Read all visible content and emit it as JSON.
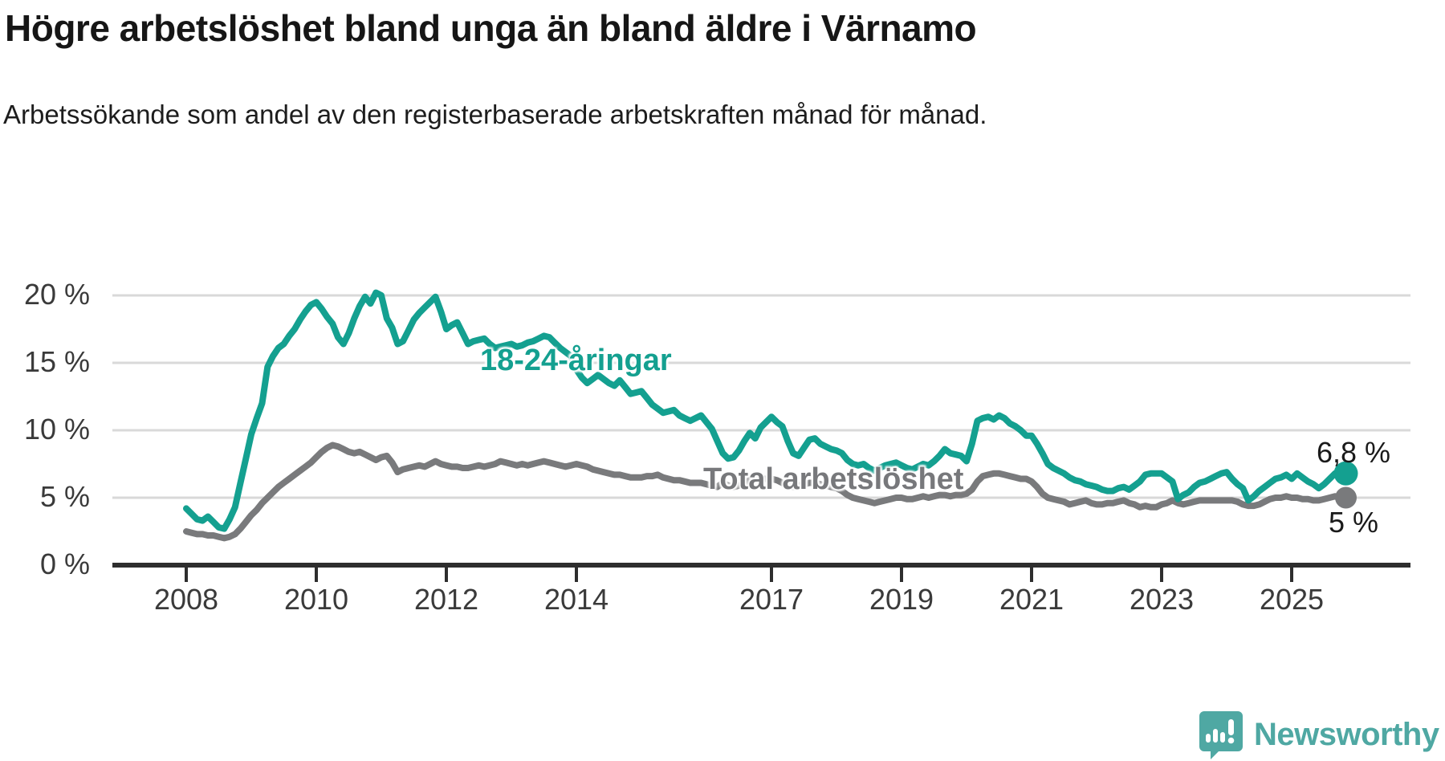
{
  "header": {
    "title": "Högre arbetslöshet bland unga än bland äldre i Värnamo",
    "subtitle": "Arbetssökande som andel av den registerbaserade arbetskraften månad för månad."
  },
  "chart_data": {
    "type": "line",
    "title": "Högre arbetslöshet bland unga än bland äldre i Värnamo",
    "xlabel": "",
    "ylabel": "",
    "grid": "horizontal",
    "ylim": [
      0,
      21
    ],
    "x_start_year": 2008,
    "points_per_year": 12,
    "x_tick_years": [
      2008,
      2010,
      2012,
      2014,
      2017,
      2019,
      2021,
      2023,
      2025
    ],
    "x_tick_labels": [
      "2008",
      "2010",
      "2012",
      "2014",
      "2017",
      "2019",
      "2021",
      "2023",
      "2025"
    ],
    "y_ticks": [
      0,
      5,
      10,
      15,
      20
    ],
    "y_tick_labels": [
      "0 %",
      "5 %",
      "10 %",
      "15 %",
      "20 %"
    ],
    "series": [
      {
        "name": "Total arbetslöshet",
        "label": "Total arbetslöshet",
        "color": "#797a7c",
        "end_label": "5 %",
        "end_value": 5.0,
        "values": [
          2.5,
          2.4,
          2.3,
          2.3,
          2.2,
          2.2,
          2.1,
          2.0,
          2.1,
          2.3,
          2.7,
          3.2,
          3.7,
          4.1,
          4.6,
          5.0,
          5.4,
          5.8,
          6.1,
          6.4,
          6.7,
          7.0,
          7.3,
          7.6,
          8.0,
          8.4,
          8.7,
          8.9,
          8.8,
          8.6,
          8.4,
          8.3,
          8.4,
          8.2,
          8.0,
          7.8,
          8.0,
          8.1,
          7.6,
          6.9,
          7.1,
          7.2,
          7.3,
          7.4,
          7.3,
          7.5,
          7.7,
          7.5,
          7.4,
          7.3,
          7.3,
          7.2,
          7.2,
          7.3,
          7.4,
          7.3,
          7.4,
          7.5,
          7.7,
          7.6,
          7.5,
          7.4,
          7.5,
          7.4,
          7.5,
          7.6,
          7.7,
          7.6,
          7.5,
          7.4,
          7.3,
          7.4,
          7.5,
          7.4,
          7.3,
          7.1,
          7.0,
          6.9,
          6.8,
          6.7,
          6.7,
          6.6,
          6.5,
          6.5,
          6.5,
          6.6,
          6.6,
          6.7,
          6.5,
          6.4,
          6.3,
          6.3,
          6.2,
          6.1,
          6.1,
          6.1,
          6.0,
          5.9,
          5.8,
          6.1,
          5.9,
          5.8,
          5.9,
          6.1,
          6.3,
          6.4,
          6.4,
          6.4,
          6.4,
          6.3,
          6.1,
          5.9,
          5.8,
          5.9,
          6.0,
          6.1,
          6.1,
          6.0,
          5.9,
          5.8,
          5.7,
          5.5,
          5.2,
          5.0,
          4.9,
          4.8,
          4.7,
          4.6,
          4.7,
          4.8,
          4.9,
          5.0,
          5.0,
          4.9,
          4.9,
          5.0,
          5.1,
          5.0,
          5.1,
          5.2,
          5.2,
          5.1,
          5.2,
          5.2,
          5.3,
          5.6,
          6.2,
          6.6,
          6.7,
          6.8,
          6.8,
          6.7,
          6.6,
          6.5,
          6.4,
          6.4,
          6.2,
          5.8,
          5.3,
          5.0,
          4.9,
          4.8,
          4.7,
          4.5,
          4.6,
          4.7,
          4.8,
          4.6,
          4.5,
          4.5,
          4.6,
          4.6,
          4.7,
          4.8,
          4.6,
          4.5,
          4.3,
          4.4,
          4.3,
          4.3,
          4.5,
          4.6,
          4.8,
          4.6,
          4.5,
          4.6,
          4.7,
          4.8,
          4.8,
          4.8,
          4.8,
          4.8,
          4.8,
          4.8,
          4.7,
          4.5,
          4.4,
          4.4,
          4.5,
          4.7,
          4.9,
          5.0,
          5.0,
          5.1,
          5.0,
          5.0,
          4.9,
          4.9,
          4.8,
          4.8,
          4.9,
          5.0,
          5.1,
          5.0,
          5.0
        ]
      },
      {
        "name": "18-24-åringar",
        "label": "18-24-åringar",
        "color": "#14a090",
        "end_label": "6,8 %",
        "end_value": 6.8,
        "values": [
          4.2,
          3.8,
          3.4,
          3.3,
          3.6,
          3.2,
          2.8,
          2.7,
          3.4,
          4.3,
          6.1,
          7.9,
          9.7,
          10.9,
          12.0,
          14.7,
          15.5,
          16.1,
          16.4,
          17.0,
          17.5,
          18.2,
          18.8,
          19.3,
          19.5,
          19.0,
          18.4,
          17.9,
          16.9,
          16.4,
          17.2,
          18.3,
          19.2,
          19.9,
          19.4,
          20.2,
          20.0,
          18.3,
          17.6,
          16.4,
          16.6,
          17.4,
          18.2,
          18.7,
          19.1,
          19.5,
          19.9,
          18.8,
          17.5,
          17.8,
          18.0,
          17.2,
          16.4,
          16.6,
          16.7,
          16.8,
          16.4,
          16.1,
          16.2,
          16.3,
          16.4,
          16.2,
          16.3,
          16.5,
          16.6,
          16.8,
          17.0,
          16.9,
          16.5,
          16.1,
          15.8,
          15.5,
          14.5,
          13.9,
          13.5,
          13.8,
          14.1,
          13.8,
          13.5,
          13.3,
          13.7,
          13.2,
          12.7,
          12.8,
          12.9,
          12.4,
          11.9,
          11.6,
          11.3,
          11.4,
          11.5,
          11.1,
          10.9,
          10.7,
          10.9,
          11.1,
          10.6,
          10.1,
          9.2,
          8.3,
          7.9,
          8.0,
          8.5,
          9.2,
          9.8,
          9.4,
          10.2,
          10.6,
          11.0,
          10.6,
          10.3,
          9.2,
          8.3,
          8.1,
          8.7,
          9.3,
          9.4,
          9.0,
          8.8,
          8.6,
          8.5,
          8.3,
          7.8,
          7.5,
          7.4,
          7.5,
          7.2,
          7.0,
          7.2,
          7.4,
          7.5,
          7.6,
          7.4,
          7.2,
          7.1,
          7.3,
          7.5,
          7.4,
          7.7,
          8.1,
          8.6,
          8.3,
          8.2,
          8.1,
          7.7,
          9.0,
          10.7,
          10.9,
          11.0,
          10.8,
          11.1,
          10.9,
          10.5,
          10.3,
          10.0,
          9.6,
          9.6,
          9.0,
          8.3,
          7.5,
          7.2,
          7.0,
          6.8,
          6.5,
          6.3,
          6.2,
          6.0,
          5.9,
          5.8,
          5.6,
          5.5,
          5.5,
          5.7,
          5.8,
          5.6,
          5.9,
          6.2,
          6.7,
          6.8,
          6.8,
          6.8,
          6.5,
          6.2,
          4.9,
          5.2,
          5.4,
          5.8,
          6.1,
          6.2,
          6.4,
          6.6,
          6.8,
          6.9,
          6.4,
          6.0,
          5.7,
          4.8,
          5.1,
          5.5,
          5.8,
          6.1,
          6.4,
          6.5,
          6.7,
          6.4,
          6.8,
          6.5,
          6.2,
          6.0,
          5.7,
          6.0,
          6.4,
          6.8,
          6.7,
          6.8
        ]
      }
    ],
    "colors": {
      "youth_line": "#14a090",
      "total_line": "#797a7c",
      "grid": "#d9d9d9",
      "axis": "#2e2e2e",
      "text": "#3a3a3a"
    }
  },
  "branding": {
    "name": "Newsworthy",
    "logo_icon": "bar-chart-speech-bubble"
  }
}
